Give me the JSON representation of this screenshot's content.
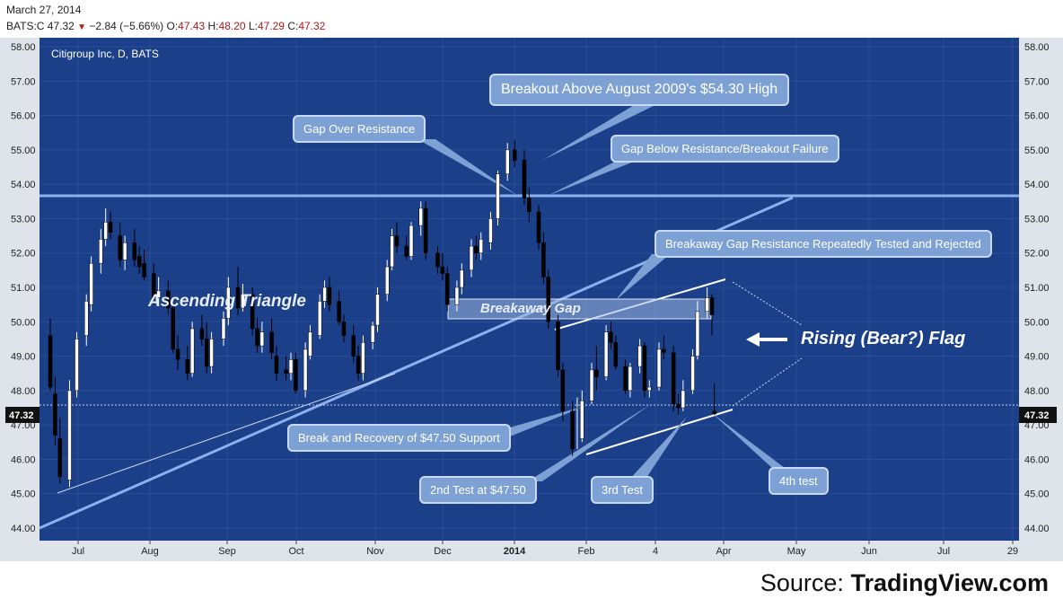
{
  "header": {
    "date": "March 27, 2014",
    "symbol": "BATS:C",
    "last": "47.32",
    "change": "−2.84 (−5.66%)",
    "open_label": "O:",
    "open": "47.43",
    "high_label": "H:",
    "high": "48.20",
    "low_label": "L:",
    "low": "47.29",
    "close_label": "C:",
    "close": "47.32"
  },
  "source": {
    "prefix": "Source: ",
    "name": "TradingView.com"
  },
  "colors": {
    "panel": "#1b3f89",
    "bull": "#ffffff",
    "bear": "#000000",
    "annotation": "#8db1ee",
    "callout": "#7da1d4"
  },
  "chart_data": {
    "type": "candlestick",
    "title": "Citigroup Inc, D, BATS",
    "x_ticks": [
      "Jul",
      "Aug",
      "Sep",
      "Oct",
      "Nov",
      "Dec",
      "2014",
      "Feb",
      "4",
      "Apr",
      "May",
      "Jun",
      "Jul",
      "29"
    ],
    "y_ticks": [
      "44.00",
      "45.00",
      "46.00",
      "47.00",
      "48.00",
      "49.00",
      "50.00",
      "51.00",
      "52.00",
      "53.00",
      "54.00",
      "55.00",
      "56.00",
      "57.00",
      "58.00"
    ],
    "ylim": [
      44,
      58
    ],
    "last_price_label": "47.32",
    "series": [
      {
        "name": "C",
        "x": [
          "2013-06-24",
          "2013-06-26",
          "2013-06-28",
          "2013-07-02",
          "2013-07-05",
          "2013-07-09",
          "2013-07-11",
          "2013-07-15",
          "2013-07-17",
          "2013-07-19",
          "2013-07-23",
          "2013-07-25",
          "2013-07-29",
          "2013-07-31",
          "2013-08-02",
          "2013-08-06",
          "2013-08-08",
          "2013-08-12",
          "2013-08-14",
          "2013-08-16",
          "2013-08-20",
          "2013-08-22",
          "2013-08-26",
          "2013-08-28",
          "2013-08-30",
          "2013-09-04",
          "2013-09-06",
          "2013-09-10",
          "2013-09-12",
          "2013-09-16",
          "2013-09-18",
          "2013-09-20",
          "2013-09-24",
          "2013-09-26",
          "2013-09-30",
          "2013-10-02",
          "2013-10-04",
          "2013-10-08",
          "2013-10-10",
          "2013-10-14",
          "2013-10-16",
          "2013-10-18",
          "2013-10-22",
          "2013-10-24",
          "2013-10-28",
          "2013-10-30",
          "2013-11-01",
          "2013-11-05",
          "2013-11-07",
          "2013-11-11",
          "2013-11-13",
          "2013-11-15",
          "2013-11-19",
          "2013-11-21",
          "2013-11-25",
          "2013-11-27",
          "2013-12-02",
          "2013-12-04",
          "2013-12-06",
          "2013-12-10",
          "2013-12-12",
          "2013-12-16",
          "2013-12-18",
          "2013-12-20",
          "2013-12-24",
          "2013-12-27",
          "2013-12-31",
          "2014-01-03",
          "2014-01-07",
          "2014-01-09",
          "2014-01-13",
          "2014-01-15",
          "2014-01-17",
          "2014-01-21",
          "2014-01-23",
          "2014-01-27",
          "2014-01-29",
          "2014-01-31",
          "2014-02-04",
          "2014-02-06",
          "2014-02-10",
          "2014-02-12",
          "2014-02-14",
          "2014-02-18",
          "2014-02-20",
          "2014-02-24",
          "2014-02-26",
          "2014-02-28",
          "2014-03-04",
          "2014-03-06",
          "2014-03-10",
          "2014-03-12",
          "2014-03-14",
          "2014-03-18",
          "2014-03-20",
          "2014-03-24",
          "2014-03-26",
          "2014-03-27"
        ],
        "open": [
          49.6,
          47.9,
          46.6,
          45.4,
          48.0,
          49.6,
          50.5,
          51.7,
          52.4,
          52.9,
          52.5,
          51.8,
          52.3,
          51.9,
          51.7,
          51.4,
          50.7,
          50.9,
          50.4,
          49.2,
          48.9,
          48.5,
          49.8,
          49.5,
          48.7,
          49.5,
          50.1,
          51.0,
          50.4,
          50.8,
          49.8,
          49.3,
          49.7,
          49.0,
          48.6,
          48.5,
          48.9,
          48.0,
          49.0,
          49.6,
          50.6,
          51.0,
          50.6,
          50.0,
          49.6,
          49.0,
          48.5,
          49.4,
          49.9,
          50.8,
          51.6,
          52.5,
          52.2,
          51.9,
          52.8,
          53.3,
          52.0,
          51.6,
          51.4,
          50.5,
          51.0,
          51.5,
          52.2,
          52.0,
          52.3,
          53.0,
          54.3,
          55.0,
          54.7,
          53.6,
          53.2,
          52.3,
          51.3,
          50.0,
          48.6,
          47.4,
          47.5,
          46.6,
          47.7,
          48.6,
          48.4,
          49.7,
          49.4,
          48.7,
          48.0,
          48.7,
          49.3,
          48.0,
          48.1,
          49.2,
          49.1,
          47.6,
          47.5,
          48.0,
          49.0,
          50.3,
          50.7,
          47.4
        ],
        "high": [
          50.1,
          48.4,
          47.2,
          48.3,
          49.7,
          50.8,
          51.9,
          52.7,
          53.3,
          53.2,
          52.9,
          52.5,
          52.7,
          52.2,
          52.1,
          51.7,
          51.3,
          51.2,
          50.6,
          49.6,
          49.3,
          50.0,
          50.2,
          50.0,
          49.7,
          50.3,
          51.3,
          51.6,
          51.1,
          51.0,
          50.1,
          50.0,
          50.1,
          49.3,
          49.0,
          49.1,
          49.1,
          49.4,
          49.9,
          50.8,
          51.2,
          51.3,
          50.9,
          50.2,
          49.9,
          49.3,
          49.6,
          50.0,
          51.0,
          51.8,
          52.7,
          52.9,
          52.5,
          52.9,
          53.5,
          53.5,
          52.2,
          52.0,
          51.6,
          51.2,
          51.7,
          52.4,
          52.5,
          52.6,
          53.2,
          54.4,
          55.2,
          55.3,
          55.0,
          53.9,
          53.4,
          52.6,
          51.5,
          50.2,
          48.8,
          47.7,
          47.8,
          48.0,
          48.8,
          49.3,
          49.9,
          50.0,
          49.6,
          48.9,
          48.8,
          49.5,
          49.4,
          48.3,
          49.4,
          49.6,
          49.3,
          47.9,
          48.3,
          49.2,
          50.6,
          51.0,
          50.8,
          48.2
        ],
        "low": [
          48.0,
          46.4,
          45.3,
          45.2,
          47.8,
          49.3,
          50.3,
          51.4,
          52.2,
          52.4,
          51.6,
          51.5,
          51.6,
          51.4,
          51.2,
          50.5,
          50.5,
          50.2,
          49.1,
          48.6,
          48.3,
          48.4,
          49.3,
          48.5,
          48.5,
          49.3,
          49.9,
          50.2,
          50.3,
          49.6,
          49.1,
          49.1,
          48.9,
          48.3,
          48.3,
          48.3,
          47.9,
          47.8,
          48.9,
          49.5,
          50.4,
          50.3,
          49.9,
          49.4,
          48.8,
          48.3,
          48.3,
          49.2,
          49.7,
          50.6,
          51.5,
          52.0,
          51.8,
          51.8,
          52.5,
          51.8,
          51.4,
          51.2,
          50.3,
          50.3,
          50.8,
          51.3,
          51.8,
          51.8,
          52.1,
          52.8,
          54.1,
          54.5,
          53.4,
          52.9,
          52.1,
          51.1,
          49.8,
          48.4,
          47.1,
          46.1,
          46.3,
          46.5,
          47.6,
          48.0,
          48.3,
          49.2,
          48.6,
          47.9,
          47.8,
          48.5,
          47.8,
          47.8,
          48.0,
          48.9,
          47.4,
          47.3,
          47.4,
          47.9,
          48.9,
          50.1,
          49.6,
          47.29
        ],
        "close": [
          48.1,
          46.7,
          45.5,
          48.0,
          49.5,
          50.6,
          51.7,
          52.4,
          52.9,
          52.6,
          51.8,
          52.3,
          51.8,
          51.6,
          51.3,
          50.7,
          50.9,
          50.4,
          49.2,
          48.9,
          48.5,
          49.8,
          49.5,
          48.7,
          49.5,
          50.1,
          51.0,
          50.4,
          50.8,
          49.8,
          49.3,
          49.7,
          49.1,
          48.5,
          48.5,
          48.9,
          48.0,
          49.2,
          49.7,
          50.6,
          51.0,
          50.5,
          50.0,
          49.6,
          49.0,
          48.5,
          49.4,
          49.9,
          50.8,
          51.6,
          52.5,
          52.2,
          51.9,
          52.8,
          53.3,
          52.0,
          51.6,
          51.4,
          50.5,
          51.0,
          51.5,
          52.2,
          52.0,
          52.4,
          53.0,
          54.3,
          55.0,
          54.7,
          53.6,
          53.2,
          52.3,
          51.3,
          50.0,
          48.6,
          47.4,
          46.3,
          47.5,
          47.7,
          48.6,
          48.4,
          49.7,
          49.4,
          48.7,
          48.0,
          48.7,
          49.3,
          48.0,
          48.1,
          49.2,
          49.1,
          47.6,
          47.5,
          48.0,
          49.0,
          50.3,
          50.7,
          50.2,
          47.32
        ]
      }
    ],
    "annotations": {
      "watermark_title": "Citigroup Inc, D, BATS",
      "ascending_triangle": "Ascending Triangle",
      "breakaway_gap": "Breakaway Gap",
      "rising_flag": "Rising (Bear?) Flag",
      "callouts": [
        "Breakout Above August 2009's $54.30 High",
        "Gap Over Resistance",
        "Gap Below Resistance/Breakout Failure",
        "Breakaway Gap Resistance Repeatedly Tested and Rejected",
        "Break and Recovery of $47.50 Support",
        "2nd Test at $47.50",
        "3rd Test",
        "4th test"
      ]
    }
  }
}
